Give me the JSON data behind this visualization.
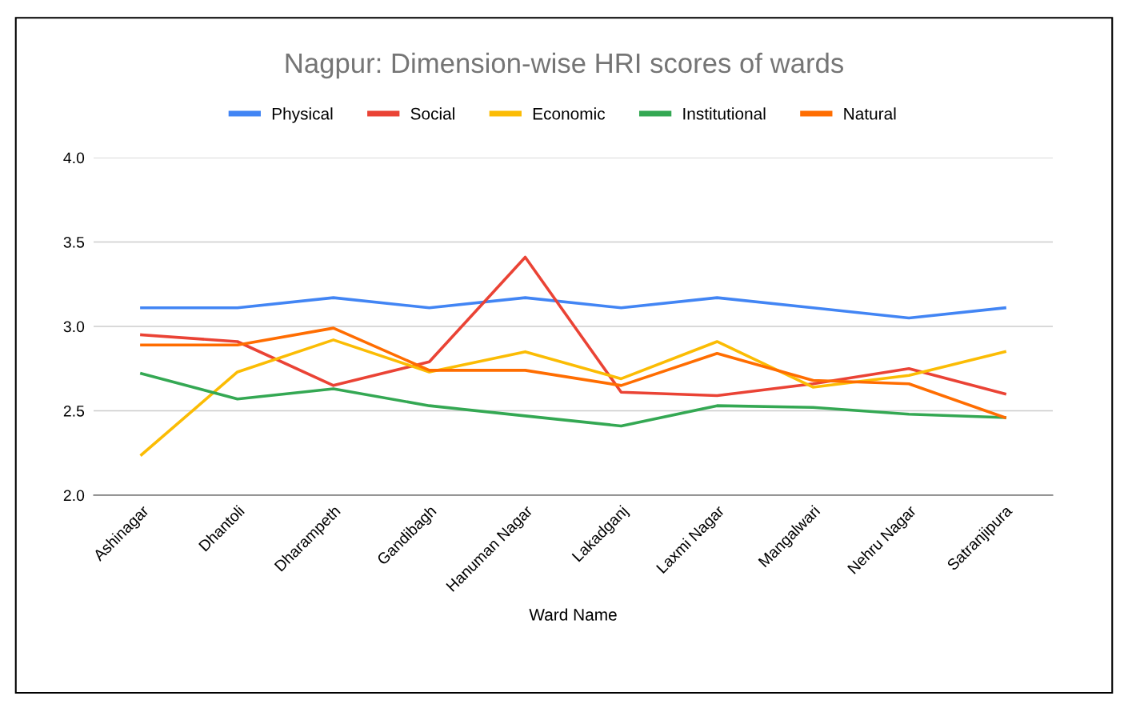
{
  "chart_data": {
    "type": "line",
    "title": "Nagpur: Dimension-wise HRI scores of wards",
    "xlabel": "Ward Name",
    "categories": [
      "Ashinagar",
      "Dhantoli",
      "Dharampeth",
      "Gandibagh",
      "Hanuman Nagar",
      "Lakadganj",
      "Laxmi Nagar",
      "Mangalwari",
      "Nehru Nagar",
      "Satranjipura"
    ],
    "series": [
      {
        "name": "Physical",
        "color": "#4285f4",
        "values": [
          3.11,
          3.11,
          3.17,
          3.11,
          3.17,
          3.11,
          3.17,
          3.11,
          3.05,
          3.11
        ]
      },
      {
        "name": "Social",
        "color": "#ea4335",
        "values": [
          2.95,
          2.91,
          2.65,
          2.79,
          3.41,
          2.61,
          2.59,
          2.66,
          2.75,
          2.6
        ]
      },
      {
        "name": "Economic",
        "color": "#fbbc04",
        "values": [
          2.24,
          2.73,
          2.92,
          2.73,
          2.85,
          2.69,
          2.91,
          2.64,
          2.71,
          2.85
        ]
      },
      {
        "name": "Institutional",
        "color": "#34a853",
        "values": [
          2.72,
          2.57,
          2.63,
          2.53,
          2.47,
          2.41,
          2.53,
          2.52,
          2.48,
          2.46
        ]
      },
      {
        "name": "Natural",
        "color": "#ff6d01",
        "values": [
          2.89,
          2.89,
          2.99,
          2.74,
          2.74,
          2.65,
          2.84,
          2.68,
          2.66,
          2.46
        ]
      }
    ],
    "ylim": [
      2.0,
      4.0
    ],
    "yticks": [
      {
        "value": 2.0,
        "label": "2.0"
      },
      {
        "value": 2.5,
        "label": "2.5"
      },
      {
        "value": 3.0,
        "label": "3.0"
      },
      {
        "value": 3.5,
        "label": "3.5"
      },
      {
        "value": 4.0,
        "label": "4.0"
      }
    ],
    "grid": "y",
    "legend": "top",
    "marker": "none",
    "line_style": "solid"
  }
}
